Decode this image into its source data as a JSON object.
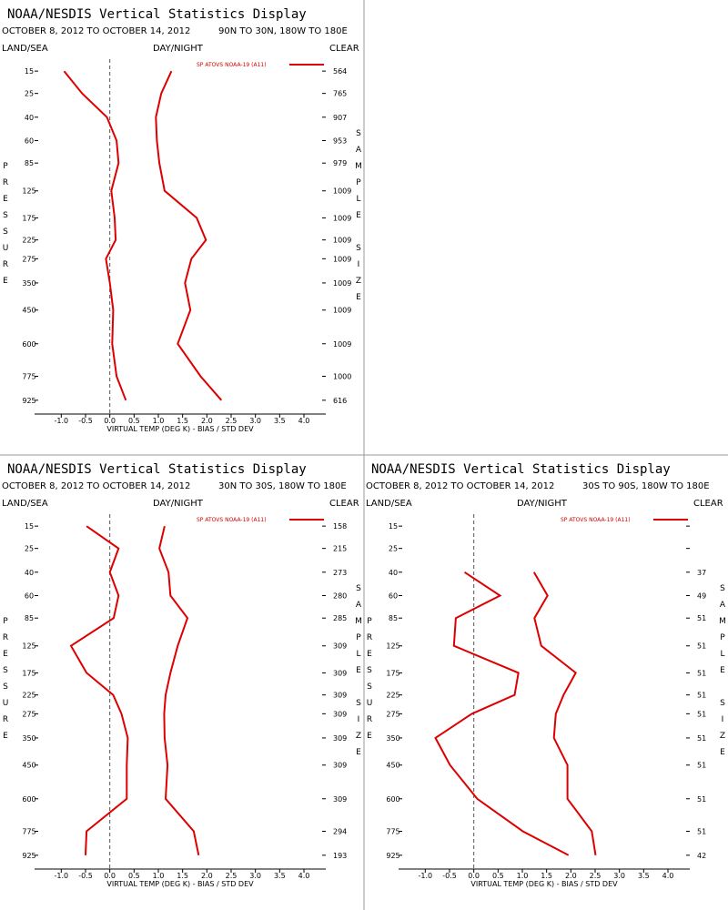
{
  "chart_data": [
    {
      "type": "line",
      "title": "NOAA/NESDIS Vertical Statistics Display",
      "date_range": "OCTOBER 8, 2012 TO OCTOBER 14, 2012",
      "region": "90N TO 30N, 180W TO 180E",
      "land_sea": "LAND/SEA",
      "day_night": "DAY/NIGHT",
      "clear": "CLEAR",
      "y_label": "PRESSURE",
      "right_label": "SAMPLE SIZE",
      "x_label": "VIRTUAL TEMP (DEG K) - BIAS / STD DEV",
      "y": [
        15,
        25,
        40,
        60,
        85,
        125,
        175,
        225,
        275,
        350,
        450,
        600,
        775,
        925
      ],
      "yticks": [
        15,
        25,
        40,
        60,
        85,
        125,
        175,
        225,
        275,
        350,
        450,
        600,
        775,
        925
      ],
      "ylim": [
        11,
        1020
      ],
      "xlim": [
        -1.55,
        4.45
      ],
      "xticks": [
        {
          "value": -1,
          "label": "-1.0"
        },
        -0.5,
        {
          "value": 0,
          "label": "0.0"
        },
        0.5,
        {
          "value": 1,
          "label": "1.0"
        },
        1.5,
        {
          "value": 2,
          "label": "2.0"
        },
        2.5,
        {
          "value": 3,
          "label": "3.0"
        },
        3.5,
        {
          "value": 4,
          "label": "4.0"
        }
      ],
      "series": [
        {
          "name": "SP ATOVS NOAA-19 (A11)",
          "color": "#dd0000",
          "values": [
            -0.94,
            -0.57,
            -0.06,
            0.14,
            0.18,
            0.03,
            0.1,
            0.12,
            -0.08,
            0.0,
            0.07,
            0.05,
            0.14,
            0.33
          ]
        },
        {
          "color": "#dd0000",
          "values": [
            1.27,
            1.06,
            0.95,
            0.97,
            1.02,
            1.13,
            1.79,
            1.98,
            1.68,
            1.55,
            1.66,
            1.4,
            1.87,
            2.3
          ]
        }
      ],
      "sample_sizes": [
        564,
        765,
        907,
        953,
        979,
        1009,
        1009,
        1009,
        1009,
        1009,
        1009,
        1009,
        1000,
        616
      ]
    },
    {
      "type": "line",
      "title": "NOAA/NESDIS Vertical Statistics Display",
      "date_range": "OCTOBER 8, 2012 TO OCTOBER 14, 2012",
      "region": "30N TO 30S, 180W TO 180E",
      "land_sea": "LAND/SEA",
      "day_night": "DAY/NIGHT",
      "clear": "CLEAR",
      "y_label": "PRESSURE",
      "right_label": "SAMPLE SIZE",
      "x_label": "VIRTUAL TEMP (DEG K) - BIAS / STD DEV",
      "y": [
        15,
        25,
        40,
        60,
        85,
        125,
        175,
        225,
        275,
        350,
        450,
        600,
        775,
        925
      ],
      "yticks": [
        15,
        25,
        40,
        60,
        85,
        125,
        175,
        225,
        275,
        350,
        450,
        600,
        775,
        925
      ],
      "ylim": [
        11,
        1020
      ],
      "xlim": [
        -1.55,
        4.45
      ],
      "xticks": [
        {
          "value": -1,
          "label": "-1.0"
        },
        -0.5,
        {
          "value": 0,
          "label": "0.0"
        },
        0.5,
        {
          "value": 1,
          "label": "1.0"
        },
        1.5,
        {
          "value": 2,
          "label": "2.0"
        },
        2.5,
        {
          "value": 3,
          "label": "3.0"
        },
        3.5,
        {
          "value": 4,
          "label": "4.0"
        }
      ],
      "series": [
        {
          "name": "SP ATOVS NOAA-19 (A11)",
          "color": "#dd0000",
          "values": [
            -0.48,
            0.18,
            0.0,
            0.18,
            0.08,
            -0.8,
            -0.48,
            0.07,
            0.24,
            0.37,
            0.35,
            0.35,
            -0.48,
            -0.5
          ]
        },
        {
          "color": "#dd0000",
          "values": [
            1.13,
            1.02,
            1.21,
            1.25,
            1.6,
            1.4,
            1.25,
            1.15,
            1.12,
            1.13,
            1.19,
            1.15,
            1.73,
            1.83
          ]
        }
      ],
      "sample_sizes": [
        158,
        215,
        273,
        280,
        285,
        309,
        309,
        309,
        309,
        309,
        309,
        309,
        294,
        193
      ]
    },
    {
      "type": "line",
      "title": "NOAA/NESDIS Vertical Statistics Display",
      "date_range": "OCTOBER 8, 2012 TO OCTOBER 14, 2012",
      "region": "30S TO 90S, 180W TO 180E",
      "land_sea": "LAND/SEA",
      "day_night": "DAY/NIGHT",
      "clear": "CLEAR",
      "y_label": "PRESSURE",
      "right_label": "SAMPLE SIZE",
      "x_label": "VIRTUAL TEMP (DEG K) - BIAS / STD DEV",
      "y": [
        15,
        25,
        40,
        60,
        85,
        125,
        175,
        225,
        275,
        350,
        450,
        600,
        775,
        925
      ],
      "yticks": [
        15,
        25,
        40,
        60,
        85,
        125,
        175,
        225,
        275,
        350,
        450,
        600,
        775,
        925
      ],
      "ylim": [
        11,
        1020
      ],
      "xlim": [
        -1.55,
        4.45
      ],
      "xticks": [
        {
          "value": -1,
          "label": "-1.0"
        },
        -0.5,
        {
          "value": 0,
          "label": "0.0"
        },
        0.5,
        {
          "value": 1,
          "label": "1.0"
        },
        1.5,
        {
          "value": 2,
          "label": "2.0"
        },
        2.5,
        {
          "value": 3,
          "label": "3.0"
        },
        3.5,
        {
          "value": 4,
          "label": "4.0"
        }
      ],
      "series": [
        {
          "name": "SP ATOVS NOAA-19 (A11)",
          "color": "#dd0000",
          "values": [
            null,
            null,
            -0.19,
            0.54,
            -0.37,
            -0.41,
            0.92,
            0.84,
            -0.04,
            -0.79,
            -0.49,
            0.07,
            1.01,
            1.95
          ]
        },
        {
          "color": "#dd0000",
          "values": [
            null,
            null,
            1.24,
            1.52,
            1.25,
            1.39,
            2.1,
            1.85,
            1.69,
            1.65,
            1.93,
            1.93,
            2.43,
            2.51
          ]
        }
      ],
      "sample_sizes": [
        null,
        null,
        37,
        49,
        51,
        51,
        51,
        51,
        51,
        51,
        51,
        51,
        51,
        42
      ]
    }
  ]
}
